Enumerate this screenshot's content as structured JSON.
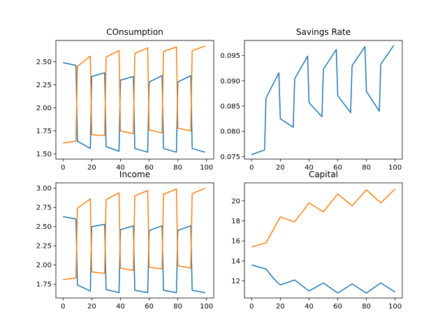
{
  "chart_data": [
    {
      "type": "line",
      "title": "COnsumption",
      "xlim": [
        -5,
        105
      ],
      "ylim": [
        1.445,
        2.73
      ],
      "xticks": [
        0,
        20,
        40,
        60,
        80,
        100
      ],
      "yticks": [
        1.5,
        1.75,
        2.0,
        2.25,
        2.5
      ],
      "ytick_format": 2,
      "grid": false,
      "series": [
        {
          "color": "#1f77b4",
          "x": [
            0,
            9,
            10,
            19,
            20,
            29,
            30,
            39,
            40,
            49,
            50,
            59,
            60,
            69,
            70,
            79,
            80,
            89,
            90,
            99
          ],
          "y": [
            2.49,
            2.46,
            1.64,
            1.56,
            2.34,
            2.38,
            1.58,
            1.53,
            2.3,
            2.34,
            1.56,
            1.52,
            2.28,
            2.35,
            1.56,
            1.52,
            2.28,
            2.35,
            1.56,
            1.52
          ]
        },
        {
          "color": "#ff7f0e",
          "x": [
            0,
            9,
            10,
            19,
            20,
            29,
            30,
            39,
            40,
            49,
            50,
            59,
            60,
            69,
            70,
            79,
            80,
            89,
            90,
            99
          ],
          "y": [
            1.62,
            1.64,
            2.45,
            2.56,
            1.71,
            1.7,
            2.55,
            2.62,
            1.75,
            1.72,
            2.59,
            2.65,
            1.76,
            1.73,
            2.61,
            2.66,
            1.78,
            1.75,
            2.62,
            2.67
          ]
        }
      ]
    },
    {
      "type": "line",
      "title": "Savings Rate",
      "xlim": [
        -5,
        105
      ],
      "ylim": [
        0.0745,
        0.098
      ],
      "xticks": [
        0,
        20,
        40,
        60,
        80,
        100
      ],
      "yticks": [
        0.075,
        0.08,
        0.085,
        0.09,
        0.095
      ],
      "ytick_format": 3,
      "grid": false,
      "series": [
        {
          "color": "#1f77b4",
          "x": [
            0,
            9,
            10,
            19,
            20,
            29,
            30,
            39,
            40,
            49,
            50,
            59,
            60,
            69,
            70,
            79,
            80,
            89,
            90,
            99
          ],
          "y": [
            0.0754,
            0.0763,
            0.0866,
            0.0916,
            0.0825,
            0.0808,
            0.0904,
            0.0949,
            0.0857,
            0.0829,
            0.0923,
            0.0962,
            0.0871,
            0.0837,
            0.093,
            0.0968,
            0.0879,
            0.084,
            0.0933,
            0.097
          ]
        }
      ]
    },
    {
      "type": "line",
      "title": "Income",
      "xlim": [
        -5,
        105
      ],
      "ylim": [
        1.57,
        3.07
      ],
      "xticks": [
        0,
        20,
        40,
        60,
        80,
        100
      ],
      "yticks": [
        1.75,
        2.0,
        2.25,
        2.5,
        2.75,
        3.0
      ],
      "ytick_format": 2,
      "grid": false,
      "series": [
        {
          "color": "#1f77b4",
          "x": [
            0,
            9,
            10,
            19,
            20,
            29,
            30,
            39,
            40,
            49,
            50,
            59,
            60,
            69,
            70,
            79,
            80,
            89,
            90,
            99
          ],
          "y": [
            2.63,
            2.6,
            1.74,
            1.66,
            2.5,
            2.53,
            1.68,
            1.64,
            2.46,
            2.51,
            1.67,
            1.64,
            2.45,
            2.51,
            1.67,
            1.64,
            2.45,
            2.51,
            1.67,
            1.64
          ]
        },
        {
          "color": "#ff7f0e",
          "x": [
            0,
            9,
            10,
            19,
            20,
            29,
            30,
            39,
            40,
            49,
            50,
            59,
            60,
            69,
            70,
            79,
            80,
            89,
            90,
            99
          ],
          "y": [
            1.81,
            1.83,
            2.74,
            2.86,
            1.91,
            1.89,
            2.85,
            2.94,
            1.96,
            1.93,
            2.9,
            2.97,
            1.97,
            1.95,
            2.92,
            2.99,
            1.99,
            1.96,
            2.93,
            3.0
          ]
        }
      ]
    },
    {
      "type": "line",
      "title": "Capital",
      "xlim": [
        -5,
        105
      ],
      "ylim": [
        10.3,
        21.8
      ],
      "xticks": [
        0,
        20,
        40,
        60,
        80,
        100
      ],
      "yticks": [
        12,
        14,
        16,
        18,
        20
      ],
      "ytick_format": 0,
      "grid": false,
      "series": [
        {
          "color": "#1f77b4",
          "x": [
            0,
            10,
            15,
            20,
            30,
            40,
            50,
            60,
            70,
            80,
            90,
            100
          ],
          "y": [
            13.6,
            13.2,
            12.3,
            11.6,
            12.1,
            11.0,
            11.8,
            10.8,
            11.7,
            10.8,
            11.8,
            10.9
          ]
        },
        {
          "color": "#ff7f0e",
          "x": [
            0,
            10,
            20,
            30,
            40,
            50,
            60,
            70,
            80,
            90,
            100
          ],
          "y": [
            15.4,
            15.8,
            18.4,
            17.9,
            19.8,
            18.9,
            20.7,
            19.5,
            21.1,
            19.8,
            21.2
          ]
        }
      ]
    }
  ]
}
